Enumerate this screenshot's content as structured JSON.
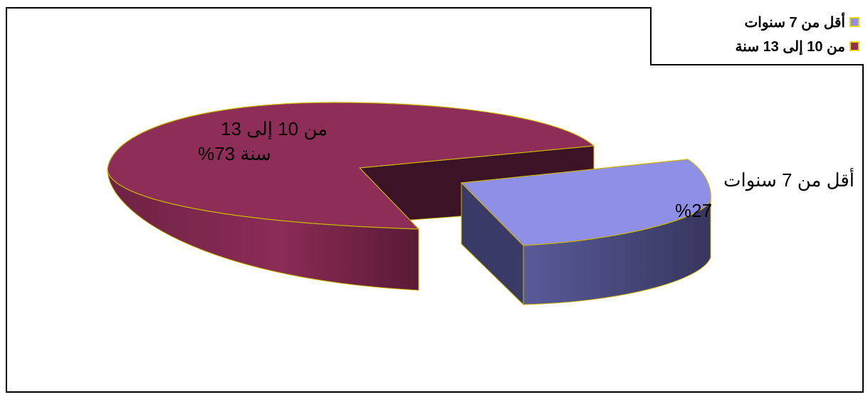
{
  "chart_data": {
    "type": "pie",
    "title": "",
    "categories": [
      "أقل من 7 سنوات",
      "من 10 إلى 13 سنة"
    ],
    "values": [
      27,
      73
    ],
    "colors": [
      "#8f8fe8",
      "#8e2d58"
    ],
    "legend_position": "top-right",
    "labels": [
      {
        "line1": "أقل من 7 سنوات",
        "line2": "%27"
      },
      {
        "line1": "من 10 إلى 13",
        "line2": "سنة 73%"
      }
    ]
  }
}
